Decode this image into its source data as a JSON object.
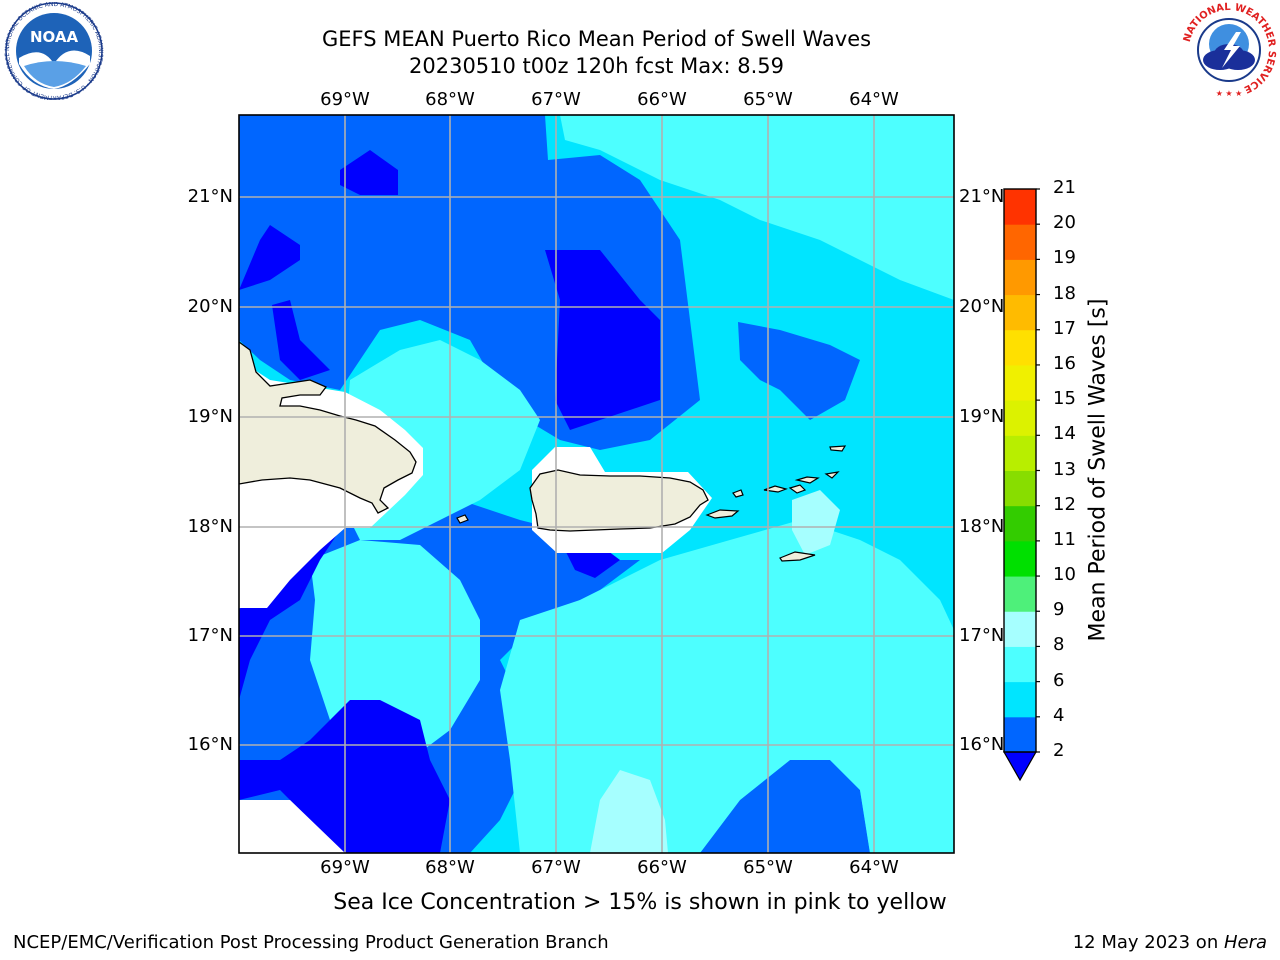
{
  "title": {
    "line1": "GEFS MEAN Puerto Rico Mean Period of Swell Waves",
    "line2": "20230510 t00z 120h fcst   Max: 8.59"
  },
  "map": {
    "lon_ticks": [
      "69°W",
      "68°W",
      "67°W",
      "66°W",
      "65°W",
      "64°W"
    ],
    "lat_ticks": [
      "21°N",
      "20°N",
      "19°N",
      "18°N",
      "17°N",
      "16°N"
    ],
    "land_color": "#efeedc",
    "grid_color": "#b0b0b0"
  },
  "colorbar": {
    "label": "Mean Period of Swell Waves [s]",
    "levels": [
      "2",
      "4",
      "6",
      "8",
      "9",
      "10",
      "11",
      "12",
      "13",
      "14",
      "15",
      "16",
      "17",
      "18",
      "19",
      "20",
      "21"
    ],
    "colors": [
      "#0066ff",
      "#00e5ff",
      "#4dffff",
      "#a6ffff",
      "#4ef07a",
      "#00e000",
      "#33cc00",
      "#88dd00",
      "#b8ee00",
      "#dcf200",
      "#f0f000",
      "#ffe000",
      "#ffbb00",
      "#ff9900",
      "#ff6600",
      "#ff3300"
    ],
    "extend_color": "#0000ff"
  },
  "note": "Sea Ice Concentration > 15% is shown in pink to yellow",
  "footer": {
    "left": "NCEP/EMC/Verification Post Processing Product Generation Branch",
    "right_date": "12 May 2023 on ",
    "right_machine": "Hera"
  },
  "logos": {
    "noaa_text": "NOAA",
    "noaa_ring": "NATIONAL OCEANIC AND ATMOSPHERIC ADMINISTRATION · U.S. DEPARTMENT OF COMMERCE ·",
    "nws_ring": "NATIONAL WEATHER SERVICE"
  }
}
